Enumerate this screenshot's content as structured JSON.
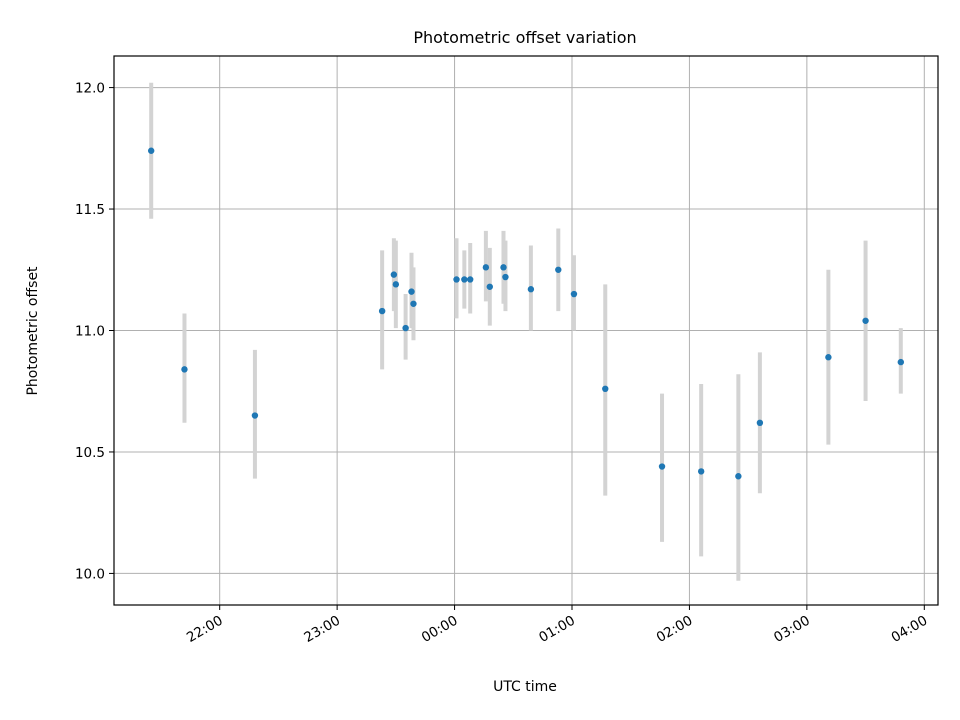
{
  "chart_data": {
    "type": "scatter",
    "title": "Photometric offset variation",
    "xlabel": "UTC time",
    "ylabel": "Photometric offset",
    "x_unit": "UTC time (HH:MM)",
    "xlim": [
      "21:06",
      "04:07"
    ],
    "ylim": [
      9.87,
      12.13
    ],
    "xticks": [
      "22:00",
      "23:00",
      "00:00",
      "01:00",
      "02:00",
      "03:00",
      "04:00"
    ],
    "yticks": [
      "10.0",
      "10.5",
      "11.0",
      "11.5",
      "12.0"
    ],
    "grid": true,
    "colors": {
      "point": "#1f77b4",
      "errorbar": "#d3d3d3",
      "grid": "#b0b0b0"
    },
    "series": [
      {
        "points": [
          {
            "x": "21:25",
            "y": 11.74,
            "ylow": 11.46,
            "yhigh": 12.02
          },
          {
            "x": "21:42",
            "y": 10.84,
            "ylow": 10.62,
            "yhigh": 11.07
          },
          {
            "x": "22:18",
            "y": 10.65,
            "ylow": 10.39,
            "yhigh": 10.92
          },
          {
            "x": "23:23",
            "y": 11.08,
            "ylow": 10.84,
            "yhigh": 11.33
          },
          {
            "x": "23:29",
            "y": 11.23,
            "ylow": 11.08,
            "yhigh": 11.38
          },
          {
            "x": "23:30",
            "y": 11.19,
            "ylow": 11.01,
            "yhigh": 11.37
          },
          {
            "x": "23:35",
            "y": 11.01,
            "ylow": 10.88,
            "yhigh": 11.15
          },
          {
            "x": "23:38",
            "y": 11.16,
            "ylow": 11.01,
            "yhigh": 11.32
          },
          {
            "x": "23:39",
            "y": 11.11,
            "ylow": 10.96,
            "yhigh": 11.26
          },
          {
            "x": "00:01",
            "y": 11.21,
            "ylow": 11.05,
            "yhigh": 11.38
          },
          {
            "x": "00:05",
            "y": 11.21,
            "ylow": 11.09,
            "yhigh": 11.33
          },
          {
            "x": "00:08",
            "y": 11.21,
            "ylow": 11.07,
            "yhigh": 11.36
          },
          {
            "x": "00:16",
            "y": 11.26,
            "ylow": 11.12,
            "yhigh": 11.41
          },
          {
            "x": "00:18",
            "y": 11.18,
            "ylow": 11.02,
            "yhigh": 11.34
          },
          {
            "x": "00:25",
            "y": 11.26,
            "ylow": 11.11,
            "yhigh": 11.41
          },
          {
            "x": "00:26",
            "y": 11.22,
            "ylow": 11.08,
            "yhigh": 11.37
          },
          {
            "x": "00:39",
            "y": 11.17,
            "ylow": 11.0,
            "yhigh": 11.35
          },
          {
            "x": "00:53",
            "y": 11.25,
            "ylow": 11.08,
            "yhigh": 11.42
          },
          {
            "x": "01:01",
            "y": 11.15,
            "ylow": 11.0,
            "yhigh": 11.31
          },
          {
            "x": "01:17",
            "y": 10.76,
            "ylow": 10.32,
            "yhigh": 11.19
          },
          {
            "x": "01:46",
            "y": 10.44,
            "ylow": 10.13,
            "yhigh": 10.74
          },
          {
            "x": "02:06",
            "y": 10.42,
            "ylow": 10.07,
            "yhigh": 10.78
          },
          {
            "x": "02:25",
            "y": 10.4,
            "ylow": 9.97,
            "yhigh": 10.82
          },
          {
            "x": "02:36",
            "y": 10.62,
            "ylow": 10.33,
            "yhigh": 10.91
          },
          {
            "x": "03:11",
            "y": 10.89,
            "ylow": 10.53,
            "yhigh": 11.25
          },
          {
            "x": "03:30",
            "y": 11.04,
            "ylow": 10.71,
            "yhigh": 11.37
          },
          {
            "x": "03:48",
            "y": 10.87,
            "ylow": 10.74,
            "yhigh": 11.01
          }
        ]
      }
    ]
  }
}
